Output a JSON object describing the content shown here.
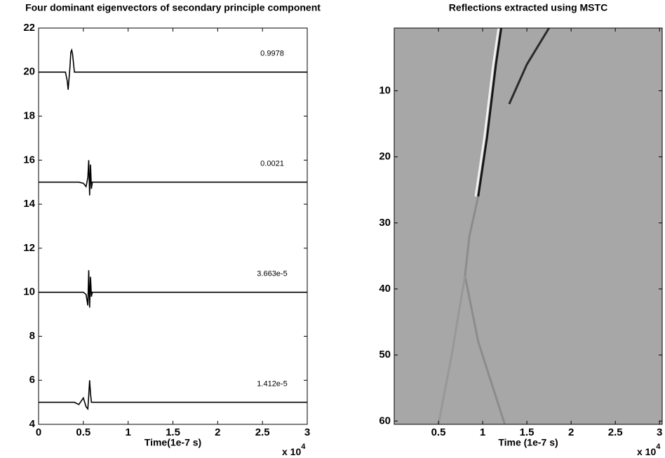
{
  "chart_data": [
    {
      "type": "line",
      "title": "Four dominant eigenvectors of secondary principle component",
      "x_label": "Time(1e-7 s)",
      "x_multiplier": {
        "base": "x 10",
        "exponent": "4"
      },
      "xlim": [
        0,
        3
      ],
      "xticks": [
        0,
        0.5,
        1,
        1.5,
        2,
        2.5,
        3
      ],
      "ylim": [
        4,
        22
      ],
      "yticks": [
        4,
        6,
        8,
        10,
        12,
        14,
        16,
        18,
        20,
        22
      ],
      "x": [
        0,
        0.3,
        0.32,
        0.33,
        0.35,
        0.36,
        0.37,
        0.38,
        0.4,
        0.45,
        0.5,
        0.53,
        0.55,
        0.56,
        0.57,
        0.58,
        0.59,
        0.6,
        0.62,
        3
      ],
      "series": [
        {
          "color": "#000000",
          "values": [
            20,
            20,
            19.6,
            19.2,
            20.2,
            20.9,
            21,
            20.8,
            20,
            20,
            20,
            20,
            20,
            20,
            20,
            20,
            20,
            20,
            20,
            20
          ]
        },
        {
          "color": "#000000",
          "values": [
            15,
            15,
            15,
            15,
            15,
            15,
            15,
            15,
            15,
            15,
            14.95,
            14.8,
            15.2,
            16,
            14.4,
            15.8,
            14.7,
            15,
            15,
            15
          ]
        },
        {
          "color": "#000000",
          "values": [
            10,
            10,
            10,
            10,
            10,
            10,
            10,
            10,
            10,
            10,
            10,
            9.9,
            9.4,
            11,
            9.3,
            10.7,
            9.8,
            10,
            10,
            10
          ]
        },
        {
          "color": "#000000",
          "values": [
            5,
            5,
            5,
            5,
            5,
            5,
            5,
            5,
            5,
            4.9,
            5.2,
            4.8,
            4.7,
            5.3,
            6,
            5.4,
            5,
            5,
            5,
            5
          ]
        }
      ],
      "annotations": [
        "0.9978",
        "0.0021",
        "3.663e-5",
        "1.412e-5"
      ]
    },
    {
      "type": "image",
      "title": "Reflections extracted using MSTC",
      "x_label": "Time (1e-7 s)",
      "x_multiplier": {
        "base": "x 10",
        "exponent": "4"
      },
      "xlim": [
        0,
        3.03
      ],
      "xticks": [
        0.5,
        1,
        1.5,
        2,
        2.5,
        3
      ],
      "ylim": [
        0.5,
        60.5
      ],
      "yticks": [
        10,
        20,
        30,
        40,
        50,
        60
      ],
      "y_reversed": true,
      "background": "#a7a7a7",
      "series": [
        {
          "color": "#f2f2f2",
          "x": [
            0.92,
            1.02,
            1.12,
            1.18
          ],
          "values": [
            26,
            17,
            6,
            0.5
          ]
        },
        {
          "color": "#151515",
          "x": [
            0.95,
            1.05,
            1.15,
            1.21
          ],
          "values": [
            26,
            17,
            6,
            0.5
          ]
        },
        {
          "color": "#2a2a2a",
          "x": [
            1.3,
            1.5,
            1.75
          ],
          "values": [
            12,
            6,
            0.5
          ]
        },
        {
          "color": "#8c8c8c",
          "x": [
            0.95,
            0.85,
            0.8,
            0.95,
            1.25
          ],
          "values": [
            26,
            32,
            38,
            48,
            60.5
          ]
        },
        {
          "color": "#989898",
          "x": [
            0.8,
            0.65,
            0.5
          ],
          "values": [
            38,
            50,
            60.5
          ]
        }
      ]
    }
  ]
}
